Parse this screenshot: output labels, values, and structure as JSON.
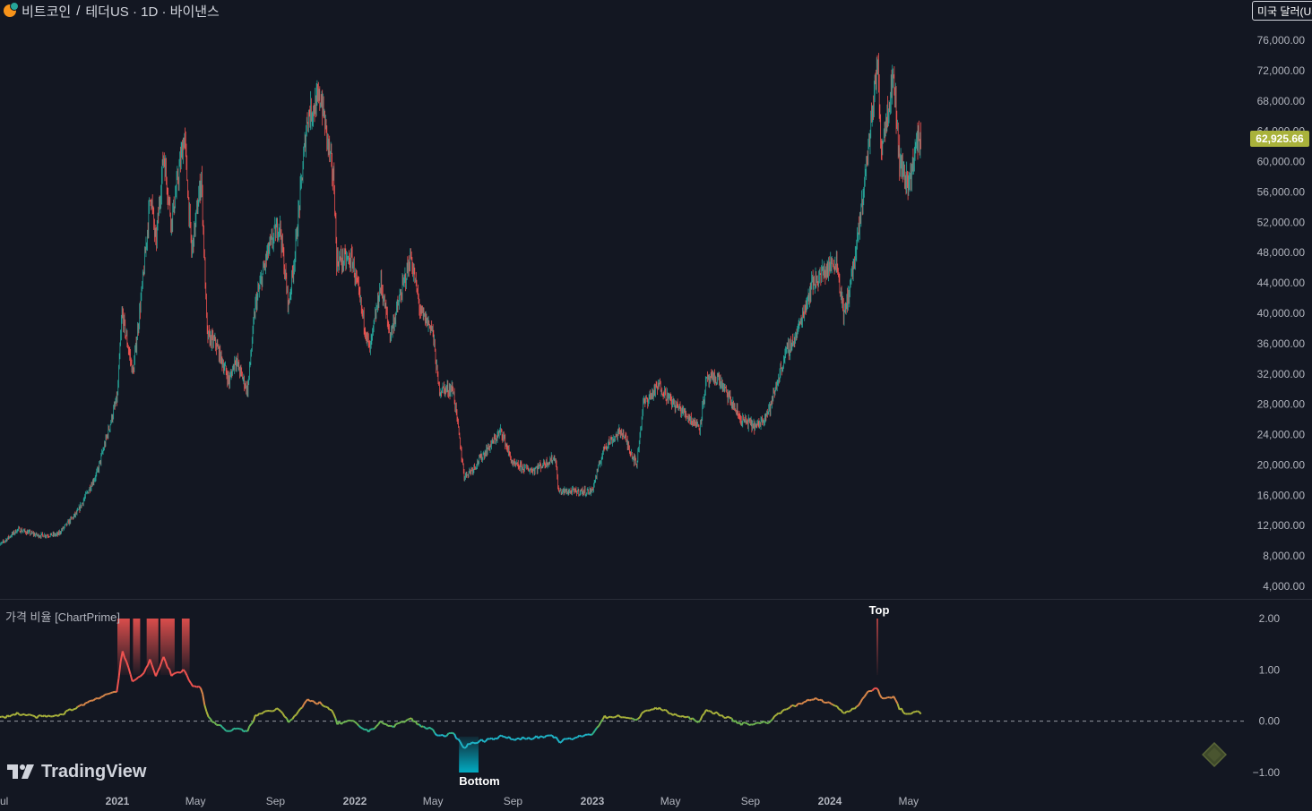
{
  "header": {
    "symbol": "비트코인",
    "separator": "/",
    "quote_info": "테더US · 1D · 바이낸스",
    "coin_icon": "bitcoin-icon"
  },
  "currency_button": {
    "label": "미국 달러(USD)"
  },
  "price_badge": {
    "value": "62,925.66",
    "color": "#a9b23b"
  },
  "indicator": {
    "title": "가격 비율 [ChartPrime]",
    "top_label": "Top",
    "bottom_label": "Bottom"
  },
  "logo": {
    "text": "TradingView",
    "icon": "tradingview-logo-icon"
  },
  "diamond": {
    "icon": "diamond-icon"
  },
  "colors": {
    "background": "#131722",
    "up": "#26a69a",
    "down": "#ef5350",
    "top_zone": "#ef5350",
    "bottom_zone": "#00bcd4",
    "price_badge": "#a9b23b"
  },
  "chart_data": [
    {
      "type": "candlestick",
      "title": "",
      "ylim": [
        4000,
        78000
      ],
      "y_ticks": [
        "76,000.00",
        "72,000.00",
        "68,000.00",
        "64,000.00",
        "60,000.00",
        "56,000.00",
        "52,000.00",
        "48,000.00",
        "44,000.00",
        "40,000.00",
        "36,000.00",
        "32,000.00",
        "28,000.00",
        "24,000.00",
        "20,000.00",
        "16,000.00",
        "12,000.00",
        "8,000.00",
        "4,000.00"
      ],
      "y_tick_values": [
        76000,
        72000,
        68000,
        64000,
        60000,
        56000,
        52000,
        48000,
        44000,
        40000,
        36000,
        32000,
        28000,
        24000,
        20000,
        16000,
        12000,
        8000,
        4000
      ],
      "x_ticks": [
        "ul",
        "2021",
        "May",
        "Sep",
        "2022",
        "May",
        "Sep",
        "2023",
        "May",
        "Sep",
        "2024",
        "May"
      ],
      "x_tick_dates": [
        "2020-07-01",
        "2021-01-01",
        "2021-05-01",
        "2021-09-01",
        "2022-01-01",
        "2022-05-01",
        "2022-09-01",
        "2023-01-01",
        "2023-05-01",
        "2023-09-01",
        "2024-01-01",
        "2024-05-01"
      ],
      "last_price": 62925.66,
      "price_path": [
        [
          "2020-07-01",
          9200
        ],
        [
          "2020-08-01",
          11500
        ],
        [
          "2020-09-01",
          10700
        ],
        [
          "2020-10-01",
          10800
        ],
        [
          "2020-11-01",
          13800
        ],
        [
          "2020-12-01",
          19000
        ],
        [
          "2021-01-01",
          29000
        ],
        [
          "2021-01-08",
          40000
        ],
        [
          "2021-01-25",
          32000
        ],
        [
          "2021-02-10",
          45000
        ],
        [
          "2021-02-21",
          56000
        ],
        [
          "2021-03-01",
          49000
        ],
        [
          "2021-03-13",
          61000
        ],
        [
          "2021-03-25",
          52000
        ],
        [
          "2021-04-14",
          63500
        ],
        [
          "2021-04-25",
          48000
        ],
        [
          "2021-05-10",
          58000
        ],
        [
          "2021-05-19",
          37000
        ],
        [
          "2021-06-01",
          36000
        ],
        [
          "2021-06-22",
          31000
        ],
        [
          "2021-07-01",
          34000
        ],
        [
          "2021-07-20",
          29800
        ],
        [
          "2021-08-01",
          41000
        ],
        [
          "2021-08-20",
          48000
        ],
        [
          "2021-09-07",
          52000
        ],
        [
          "2021-09-21",
          41000
        ],
        [
          "2021-10-01",
          48000
        ],
        [
          "2021-10-20",
          66000
        ],
        [
          "2021-11-10",
          68500
        ],
        [
          "2021-11-30",
          57000
        ],
        [
          "2021-12-04",
          47000
        ],
        [
          "2021-12-28",
          47000
        ],
        [
          "2022-01-10",
          41000
        ],
        [
          "2022-01-24",
          35000
        ],
        [
          "2022-02-10",
          44000
        ],
        [
          "2022-02-24",
          37000
        ],
        [
          "2022-03-28",
          47500
        ],
        [
          "2022-04-12",
          40000
        ],
        [
          "2022-04-30",
          38000
        ],
        [
          "2022-05-10",
          30000
        ],
        [
          "2022-06-01",
          30000
        ],
        [
          "2022-06-18",
          18500
        ],
        [
          "2022-07-01",
          19500
        ],
        [
          "2022-08-14",
          24500
        ],
        [
          "2022-09-01",
          20000
        ],
        [
          "2022-10-01",
          19300
        ],
        [
          "2022-11-05",
          21000
        ],
        [
          "2022-11-10",
          16500
        ],
        [
          "2022-12-31",
          16500
        ],
        [
          "2023-01-20",
          22500
        ],
        [
          "2023-02-15",
          24500
        ],
        [
          "2023-03-10",
          20000
        ],
        [
          "2023-03-20",
          28000
        ],
        [
          "2023-04-14",
          30500
        ],
        [
          "2023-05-01",
          28500
        ],
        [
          "2023-06-15",
          25000
        ],
        [
          "2023-06-25",
          31000
        ],
        [
          "2023-07-13",
          31500
        ],
        [
          "2023-08-17",
          26000
        ],
        [
          "2023-09-11",
          25000
        ],
        [
          "2023-10-01",
          27500
        ],
        [
          "2023-10-24",
          34500
        ],
        [
          "2023-11-10",
          37000
        ],
        [
          "2023-12-05",
          44000
        ],
        [
          "2024-01-11",
          47000
        ],
        [
          "2024-01-23",
          39500
        ],
        [
          "2024-02-12",
          49000
        ],
        [
          "2024-02-28",
          61000
        ],
        [
          "2024-03-14",
          73000
        ],
        [
          "2024-03-20",
          62000
        ],
        [
          "2024-04-08",
          71500
        ],
        [
          "2024-04-17",
          60000
        ],
        [
          "2024-05-01",
          57000
        ],
        [
          "2024-05-15",
          63000
        ],
        [
          "2024-05-20",
          62925.66
        ]
      ]
    },
    {
      "type": "line",
      "title": "가격 비율 [ChartPrime]",
      "ylim": [
        -1.2,
        2.1
      ],
      "y_ticks": [
        "2.00",
        "1.00",
        "0.00",
        "−1.00"
      ],
      "y_tick_values": [
        2,
        1,
        0,
        -1
      ],
      "zero_line": "dashed",
      "ratio_path": [
        [
          "2020-07-01",
          0.05
        ],
        [
          "2020-08-01",
          0.15
        ],
        [
          "2020-09-01",
          0.08
        ],
        [
          "2020-10-01",
          0.1
        ],
        [
          "2020-11-01",
          0.28
        ],
        [
          "2020-12-01",
          0.45
        ],
        [
          "2021-01-01",
          0.6
        ],
        [
          "2021-01-08",
          1.4
        ],
        [
          "2021-01-25",
          0.75
        ],
        [
          "2021-02-10",
          0.95
        ],
        [
          "2021-02-21",
          1.2
        ],
        [
          "2021-03-01",
          0.85
        ],
        [
          "2021-03-13",
          1.25
        ],
        [
          "2021-03-25",
          0.9
        ],
        [
          "2021-04-14",
          1.0
        ],
        [
          "2021-04-25",
          0.7
        ],
        [
          "2021-05-10",
          0.65
        ],
        [
          "2021-05-19",
          0.1
        ],
        [
          "2021-06-01",
          -0.05
        ],
        [
          "2021-06-22",
          -0.2
        ],
        [
          "2021-07-01",
          -0.15
        ],
        [
          "2021-07-20",
          -0.2
        ],
        [
          "2021-08-01",
          0.1
        ],
        [
          "2021-08-20",
          0.2
        ],
        [
          "2021-09-07",
          0.25
        ],
        [
          "2021-09-21",
          0.0
        ],
        [
          "2021-10-01",
          0.1
        ],
        [
          "2021-10-20",
          0.4
        ],
        [
          "2021-11-10",
          0.35
        ],
        [
          "2021-11-30",
          0.15
        ],
        [
          "2021-12-04",
          -0.05
        ],
        [
          "2021-12-28",
          0.0
        ],
        [
          "2022-01-10",
          -0.12
        ],
        [
          "2022-01-24",
          -0.2
        ],
        [
          "2022-02-10",
          0.0
        ],
        [
          "2022-02-24",
          -0.12
        ],
        [
          "2022-03-28",
          0.05
        ],
        [
          "2022-04-12",
          -0.1
        ],
        [
          "2022-04-30",
          -0.15
        ],
        [
          "2022-05-10",
          -0.3
        ],
        [
          "2022-06-01",
          -0.25
        ],
        [
          "2022-06-18",
          -0.5
        ],
        [
          "2022-07-01",
          -0.42
        ],
        [
          "2022-08-14",
          -0.3
        ],
        [
          "2022-09-01",
          -0.35
        ],
        [
          "2022-10-01",
          -0.32
        ],
        [
          "2022-11-05",
          -0.3
        ],
        [
          "2022-11-10",
          -0.4
        ],
        [
          "2022-12-31",
          -0.25
        ],
        [
          "2023-01-20",
          0.08
        ],
        [
          "2023-02-15",
          0.1
        ],
        [
          "2023-03-10",
          0.0
        ],
        [
          "2023-03-20",
          0.2
        ],
        [
          "2023-04-14",
          0.25
        ],
        [
          "2023-05-01",
          0.15
        ],
        [
          "2023-06-15",
          0.0
        ],
        [
          "2023-06-25",
          0.2
        ],
        [
          "2023-07-13",
          0.15
        ],
        [
          "2023-08-17",
          -0.05
        ],
        [
          "2023-09-11",
          -0.05
        ],
        [
          "2023-10-01",
          0.0
        ],
        [
          "2023-10-24",
          0.25
        ],
        [
          "2023-11-10",
          0.3
        ],
        [
          "2023-12-05",
          0.45
        ],
        [
          "2024-01-11",
          0.3
        ],
        [
          "2024-01-23",
          0.15
        ],
        [
          "2024-02-12",
          0.3
        ],
        [
          "2024-02-28",
          0.55
        ],
        [
          "2024-03-14",
          0.68
        ],
        [
          "2024-03-20",
          0.42
        ],
        [
          "2024-04-08",
          0.48
        ],
        [
          "2024-04-17",
          0.25
        ],
        [
          "2024-05-01",
          0.12
        ],
        [
          "2024-05-15",
          0.18
        ],
        [
          "2024-05-20",
          0.15
        ]
      ],
      "top_zones": [
        [
          "2021-01-01",
          "2021-01-20"
        ],
        [
          "2021-01-25",
          "2021-02-05"
        ],
        [
          "2021-02-15",
          "2021-03-05"
        ],
        [
          "2021-03-08",
          "2021-03-30"
        ],
        [
          "2021-04-10",
          "2021-04-22"
        ],
        [
          "2024-03-13",
          "2024-03-15"
        ]
      ],
      "bottom_zone": [
        "2022-06-10",
        "2022-07-10"
      ]
    }
  ]
}
